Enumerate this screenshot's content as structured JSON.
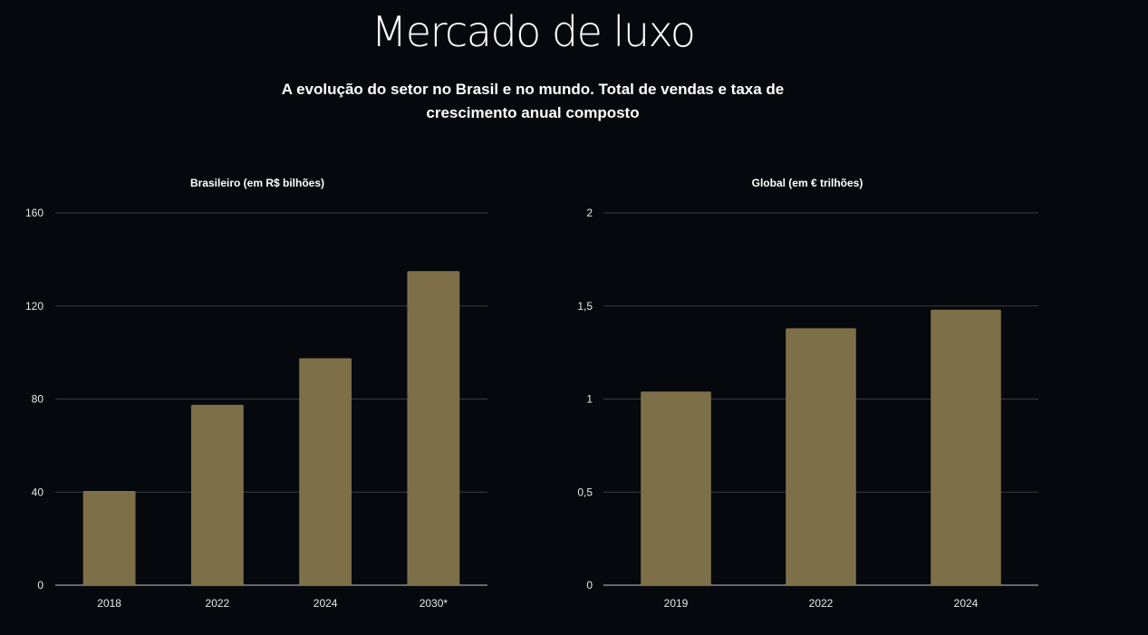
{
  "header": {
    "title": "Mercado de luxo",
    "subtitle": "A evolução do setor no Brasil e no mundo. Total de vendas e taxa de crescimento anual composto"
  },
  "colors": {
    "background": "#05080c",
    "bar": "#7d6f48",
    "gridline": "#3a3d42",
    "baseline": "#c8c8c8"
  },
  "chart_data": [
    {
      "type": "bar",
      "title": "Brasileiro (em R$ bilhões)",
      "categories": [
        "2018",
        "2022",
        "2024",
        "2030*"
      ],
      "values": [
        40.5,
        77.5,
        97.5,
        135
      ],
      "ylim": [
        0,
        160
      ],
      "yticks": [
        0,
        40,
        80,
        120,
        160
      ],
      "ytick_labels": [
        "0",
        "40",
        "80",
        "120",
        "160"
      ],
      "grid": true,
      "legend": "none"
    },
    {
      "type": "bar",
      "title": "Global (em € trilhões)",
      "categories": [
        "2019",
        "2022",
        "2024"
      ],
      "values": [
        1.04,
        1.38,
        1.48
      ],
      "ylim": [
        0,
        2
      ],
      "yticks": [
        0,
        0.5,
        1,
        1.5,
        2
      ],
      "ytick_labels": [
        "0",
        "0,5",
        "1",
        "1,5",
        "2"
      ],
      "grid": true,
      "legend": "none"
    }
  ]
}
